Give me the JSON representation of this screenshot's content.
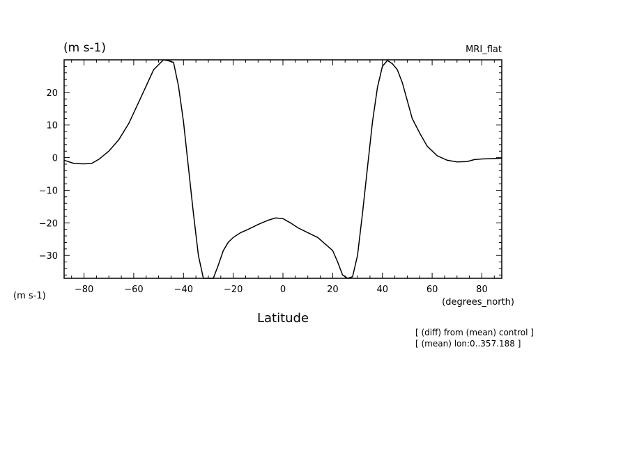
{
  "chart_data": {
    "type": "line",
    "title": "MRI_flat",
    "y_unit_label": "(m s-1)",
    "x_unit_label": "(degrees_north)",
    "corner_unit_label": "(m s-1)",
    "xlabel": "Latitude",
    "annotations": [
      "[ (diff) from (mean) control ]",
      "[ (mean) lon:0..357.188 ]"
    ],
    "xlim": [
      -88,
      88
    ],
    "ylim": [
      -37,
      30
    ],
    "x_ticks": [
      -80,
      -60,
      -40,
      -20,
      0,
      20,
      40,
      60,
      80
    ],
    "y_ticks": [
      -30,
      -20,
      -10,
      0,
      10,
      20
    ],
    "grid": false,
    "series": [
      {
        "x": [
          -88,
          -84,
          -80,
          -77,
          -74,
          -70,
          -66,
          -62,
          -58,
          -55,
          -52,
          -50,
          -48,
          -46,
          -44,
          -42,
          -40,
          -38,
          -36,
          -34,
          -32,
          -30,
          -28,
          -26,
          -24,
          -22,
          -20,
          -17,
          -14,
          -10,
          -6,
          -3,
          0,
          3,
          6,
          10,
          14,
          17,
          20,
          22,
          24,
          26,
          28,
          30,
          32,
          34,
          36,
          38,
          40,
          42,
          44,
          46,
          48,
          50,
          52,
          55,
          58,
          62,
          66,
          70,
          74,
          77,
          80,
          84,
          88
        ],
        "y": [
          -0.8,
          -1.8,
          -1.9,
          -1.8,
          -0.5,
          2,
          5.5,
          10.5,
          17,
          22,
          27,
          28.5,
          30,
          29.7,
          29.2,
          22,
          11,
          -3,
          -17,
          -30,
          -37,
          -37,
          -37,
          -33,
          -28.5,
          -26,
          -24.5,
          -23,
          -22,
          -20.5,
          -19.2,
          -18.5,
          -18.7,
          -20,
          -21.5,
          -23,
          -24.5,
          -26.5,
          -28.5,
          -32,
          -36,
          -37,
          -36.5,
          -30,
          -17,
          -3,
          11,
          21.5,
          28,
          29.8,
          28.8,
          27,
          23,
          17.5,
          12,
          7.5,
          3.5,
          0.6,
          -0.8,
          -1.3,
          -1.2,
          -0.6,
          -0.4,
          -0.3,
          -0.2
        ]
      }
    ]
  }
}
